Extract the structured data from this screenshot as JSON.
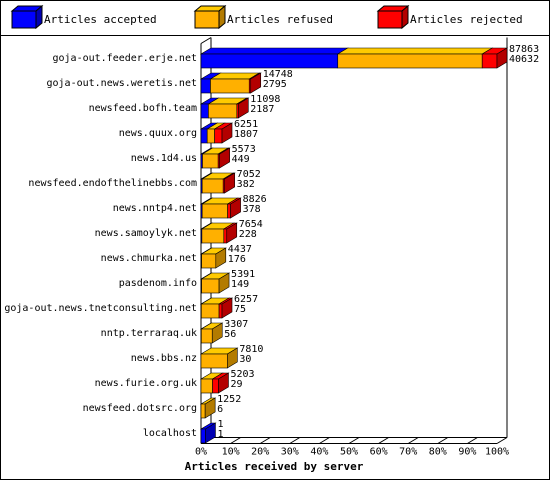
{
  "chart_data": {
    "type": "bar",
    "orientation": "horizontal",
    "categories": [
      "goja-out.feeder.erje.net",
      "goja-out.news.weretis.net",
      "newsfeed.bofh.team",
      "news.quux.org",
      "news.1d4.us",
      "newsfeed.endofthelinebbs.com",
      "news.nntp4.net",
      "news.samoylyk.net",
      "news.chmurka.net",
      "pasdenom.info",
      "goja-out.news.tnetconsulting.net",
      "nntp.terraraq.uk",
      "news.bbs.nz",
      "news.furie.org.uk",
      "newsfeed.dotsrc.org",
      "localhost"
    ],
    "series": [
      {
        "name": "Articles accepted",
        "color": "#0000ff",
        "values": [
          46.2,
          3.2,
          2.5,
          2.1,
          0.5,
          0.4,
          0.4,
          0.3,
          0.2,
          0.2,
          0.1,
          0.1,
          0,
          0,
          0,
          1.5
        ]
      },
      {
        "name": "Articles refused",
        "color": "#ffb000",
        "values": [
          48.8,
          13.1,
          9.6,
          2.5,
          5.3,
          7.1,
          8.6,
          7.4,
          4.8,
          5.9,
          6.0,
          3.7,
          8.9,
          3.9,
          1.4,
          0
        ]
      },
      {
        "name": "Articles rejected",
        "color": "#ff0000",
        "values": [
          5,
          0.5,
          0.5,
          2.5,
          0.5,
          0.5,
          1.0,
          1.0,
          0,
          0,
          1.0,
          0,
          0,
          2.0,
          0,
          0
        ]
      }
    ],
    "offered": [
      87863,
      14748,
      11098,
      6251,
      5573,
      7052,
      8826,
      7654,
      4437,
      5391,
      6257,
      3307,
      7810,
      5203,
      1252,
      1
    ],
    "accepted": [
      40632,
      2795,
      2187,
      1807,
      449,
      382,
      378,
      228,
      176,
      149,
      75,
      56,
      30,
      29,
      6,
      1
    ],
    "xlim": [
      0,
      100
    ],
    "xticks": [
      {
        "value": 0,
        "label": "0%"
      },
      {
        "value": 10,
        "label": "10%"
      },
      {
        "value": 20,
        "label": "20%"
      },
      {
        "value": 30,
        "label": "30%"
      },
      {
        "value": 40,
        "label": "40%"
      },
      {
        "value": 50,
        "label": "50%"
      },
      {
        "value": 60,
        "label": "60%"
      },
      {
        "value": 70,
        "label": "70%"
      },
      {
        "value": 80,
        "label": "80%"
      },
      {
        "value": 90,
        "label": "90%"
      },
      {
        "value": 100,
        "label": "100%"
      }
    ],
    "x_label": "Articles received by server"
  }
}
